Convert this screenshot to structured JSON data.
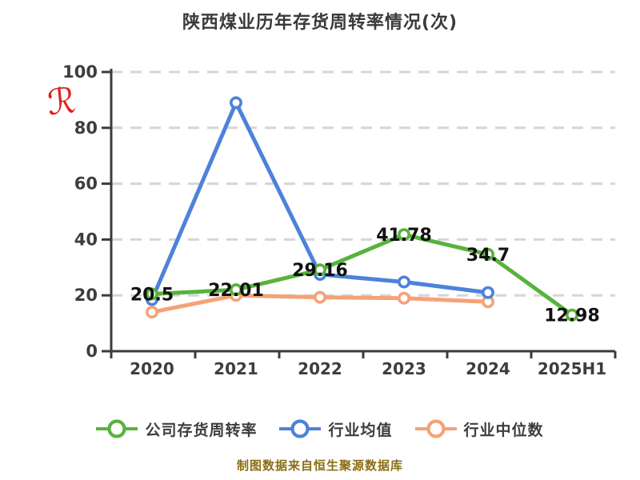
{
  "title": "陕西煤业历年存货周转率情况(次)",
  "footer": {
    "text": "制图数据来自恒生聚源数据库",
    "color": "#8c6d14"
  },
  "annotation": {
    "text": "ℛ",
    "color": "#e01e1e"
  },
  "axis_style": {
    "axis_color": "#3b3b3b",
    "grid_color": "#d6d6d6",
    "tick_label_color": "#3d3d3d",
    "data_label_color": "#111111"
  },
  "chart_data": {
    "type": "line",
    "title": "陕西煤业历年存货周转率情况(次)",
    "categories": [
      "2020",
      "2021",
      "2022",
      "2023",
      "2024",
      "2025H1"
    ],
    "yticks": [
      0,
      20,
      40,
      60,
      80,
      100
    ],
    "ylim": [
      0,
      100
    ],
    "grid": "horizontal-dashed",
    "legend_position": "bottom",
    "series": [
      {
        "name": "公司存货周转率",
        "color": "#57b33c",
        "values": [
          20.5,
          22.01,
          29.16,
          41.78,
          34.7,
          12.98
        ],
        "point_labels": [
          "20.5",
          "22.01",
          "29.16",
          "41.78",
          "34.7",
          "12.98"
        ]
      },
      {
        "name": "行业均值",
        "color": "#4d82d9",
        "values": [
          18.5,
          89,
          27.5,
          24.8,
          21,
          null
        ],
        "point_labels": null
      },
      {
        "name": "行业中位数",
        "color": "#f5a277",
        "values": [
          14,
          20,
          19.3,
          19,
          17.7,
          null
        ],
        "point_labels": null
      }
    ],
    "source_note": "制图数据来自恒生聚源数据库"
  }
}
